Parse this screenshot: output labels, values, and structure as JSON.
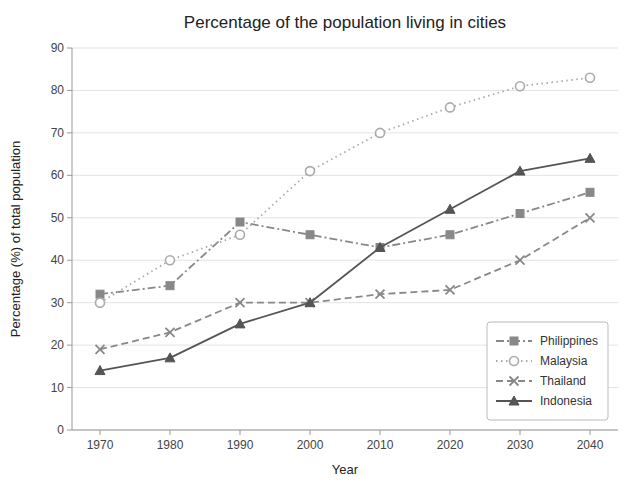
{
  "chart_data": {
    "type": "line",
    "title": "Percentage of the population living in cities",
    "xlabel": "Year",
    "ylabel": "Percentage (%) of total population",
    "x": [
      1970,
      1980,
      1990,
      2000,
      2010,
      2020,
      2030,
      2040
    ],
    "series": [
      {
        "name": "Philippines",
        "color": "#888888",
        "marker": "square",
        "line_style": "dashdot",
        "values": [
          32,
          34,
          49,
          46,
          43,
          46,
          51,
          56
        ]
      },
      {
        "name": "Malaysia",
        "color": "#aaaaaa",
        "marker": "circle-open",
        "line_style": "dotted",
        "values": [
          30,
          40,
          46,
          61,
          70,
          76,
          81,
          83
        ]
      },
      {
        "name": "Thailand",
        "color": "#888888",
        "marker": "x",
        "line_style": "dashed",
        "values": [
          19,
          23,
          30,
          30,
          32,
          33,
          40,
          50
        ]
      },
      {
        "name": "Indonesia",
        "color": "#555555",
        "marker": "triangle",
        "line_style": "solid",
        "values": [
          14,
          17,
          25,
          30,
          43,
          52,
          61,
          64
        ]
      }
    ],
    "xlim": [
      1966,
      2044
    ],
    "xticks": [
      1970,
      1980,
      1990,
      2000,
      2010,
      2020,
      2030,
      2040
    ],
    "ylim": [
      0,
      90
    ],
    "yticks": [
      0,
      10,
      20,
      30,
      40,
      50,
      60,
      70,
      80,
      90
    ],
    "grid": true,
    "legend": "lower right"
  }
}
